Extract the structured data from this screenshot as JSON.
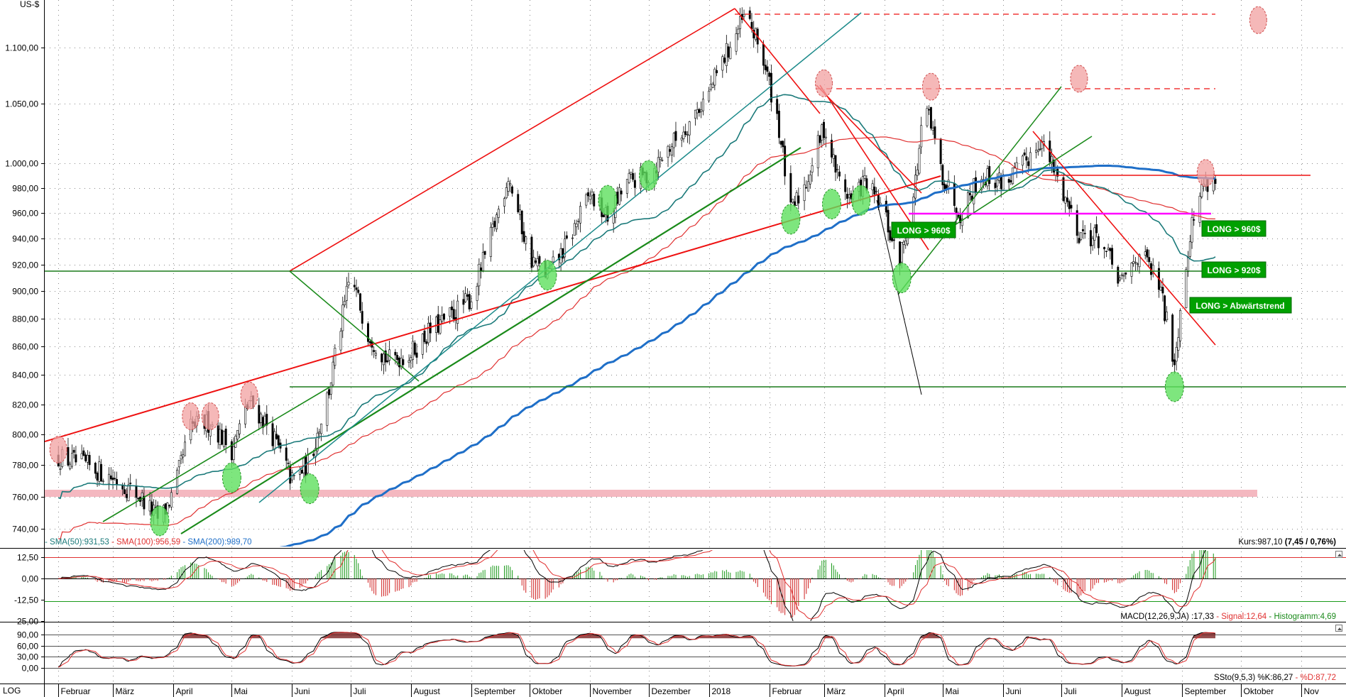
{
  "chart_data": [
    {
      "type": "candlestick",
      "title": "",
      "ylabel": "US-$",
      "y_scale": "log",
      "ylim": [
        732,
        1140
      ],
      "grid": true,
      "yticks": [
        "740,00",
        "760,00",
        "780,00",
        "800,00",
        "820,00",
        "840,00",
        "860,00",
        "880,00",
        "900,00",
        "920,00",
        "940,00",
        "960,00",
        "980,00",
        "1.000,00",
        "1.050,00",
        "1.100,00"
      ],
      "ytick_values": [
        740,
        760,
        780,
        800,
        820,
        840,
        860,
        880,
        900,
        920,
        940,
        960,
        980,
        1000,
        1050,
        1100
      ],
      "months": [
        "Februar",
        "März",
        "April",
        "Mai",
        "Juni",
        "Juli",
        "August",
        "September",
        "Oktober",
        "November",
        "Dezember",
        "2018",
        "Februar",
        "März",
        "April",
        "Mai",
        "Juni",
        "Juli",
        "August",
        "September",
        "Oktober",
        "Nov"
      ],
      "close_series": [
        [
          "2017-02-01",
          785
        ],
        [
          "2017-02-15",
          780
        ],
        [
          "2017-03-01",
          772
        ],
        [
          "2017-03-15",
          760
        ],
        [
          "2017-03-25",
          745
        ],
        [
          "2017-04-01",
          762
        ],
        [
          "2017-04-10",
          805
        ],
        [
          "2017-04-20",
          808
        ],
        [
          "2017-05-01",
          790
        ],
        [
          "2017-05-10",
          822
        ],
        [
          "2017-05-20",
          805
        ],
        [
          "2017-06-01",
          770
        ],
        [
          "2017-06-10",
          782
        ],
        [
          "2017-06-20",
          830
        ],
        [
          "2017-07-01",
          912
        ],
        [
          "2017-07-10",
          870
        ],
        [
          "2017-07-20",
          850
        ],
        [
          "2017-08-01",
          855
        ],
        [
          "2017-08-10",
          870
        ],
        [
          "2017-08-20",
          880
        ],
        [
          "2017-09-01",
          895
        ],
        [
          "2017-09-10",
          935
        ],
        [
          "2017-09-20",
          990
        ],
        [
          "2017-10-01",
          925
        ],
        [
          "2017-10-10",
          912
        ],
        [
          "2017-10-20",
          935
        ],
        [
          "2017-11-01",
          975
        ],
        [
          "2017-11-10",
          955
        ],
        [
          "2017-11-20",
          985
        ],
        [
          "2017-12-01",
          990
        ],
        [
          "2017-12-10",
          1010
        ],
        [
          "2017-12-20",
          1030
        ],
        [
          "2018-01-01",
          1060
        ],
        [
          "2018-01-10",
          1095
        ],
        [
          "2018-01-20",
          1130
        ],
        [
          "2018-01-28",
          1095
        ],
        [
          "2018-02-05",
          1040
        ],
        [
          "2018-02-12",
          960
        ],
        [
          "2018-02-20",
          985
        ],
        [
          "2018-03-01",
          1030
        ],
        [
          "2018-03-08",
          990
        ],
        [
          "2018-03-15",
          970
        ],
        [
          "2018-03-22",
          985
        ],
        [
          "2018-04-01",
          960
        ],
        [
          "2018-04-08",
          920
        ],
        [
          "2018-04-15",
          960
        ],
        [
          "2018-04-22",
          1050
        ],
        [
          "2018-05-01",
          990
        ],
        [
          "2018-05-10",
          960
        ],
        [
          "2018-05-20",
          990
        ],
        [
          "2018-06-01",
          985
        ],
        [
          "2018-06-10",
          995
        ],
        [
          "2018-06-20",
          1020
        ],
        [
          "2018-07-01",
          980
        ],
        [
          "2018-07-10",
          945
        ],
        [
          "2018-07-20",
          940
        ],
        [
          "2018-08-01",
          905
        ],
        [
          "2018-08-10",
          930
        ],
        [
          "2018-08-20",
          905
        ],
        [
          "2018-08-28",
          850
        ],
        [
          "2018-09-05",
          945
        ],
        [
          "2018-09-12",
          985
        ],
        [
          "2018-09-18",
          987
        ]
      ],
      "sma_labels": {
        "sma50": "- SMA(50):931,53",
        "sma100": " - SMA(100):956,59",
        "sma200": " - SMA(200):989,70"
      },
      "price_label": "Kurs:987,10 ",
      "price_change": "(7,45 / 0,76%)",
      "signals": [
        "LONG > 960$",
        "LONG > 960$",
        "LONG > 920$",
        "LONG > Abwärtstrend"
      ],
      "colors": {
        "candle": "#000000",
        "sma50": "#1b7a7a",
        "sma100": "#e03030",
        "sma200": "#1f6fc8",
        "trend_red": "#ee1111",
        "trend_green": "#1a8a1a",
        "support": "#1a7a1a",
        "magenta": "#ff00ff",
        "zone": "#f4b8c0",
        "signal_box": "#00a000"
      }
    },
    {
      "type": "line",
      "name": "MACD",
      "yticks": [
        "12,50",
        "0,00",
        "-12,50",
        "-25,00"
      ],
      "ytick_values": [
        12.5,
        0,
        -12.5,
        -25
      ],
      "ylim": [
        -32,
        28
      ],
      "label": "MACD(12,26,9,JA) :17,33",
      "signal_label": " - Signal:12,64",
      "histogram_label": " - Histogramm:4,69",
      "current": {
        "macd": 17.33,
        "signal": 12.64,
        "histogram": 4.69
      }
    },
    {
      "type": "line",
      "name": "SSto",
      "yticks": [
        "90,00",
        "60,00",
        "30,00",
        "0,00"
      ],
      "ytick_values": [
        90,
        60,
        30,
        0
      ],
      "ylim": [
        -12,
        106
      ],
      "label": "SSto(9,5,3) %K:86,27",
      "d_label": " - %D:87,72",
      "current": {
        "k": 86.27,
        "d": 87.72
      }
    }
  ],
  "footer": {
    "scale_label": "LOG"
  }
}
